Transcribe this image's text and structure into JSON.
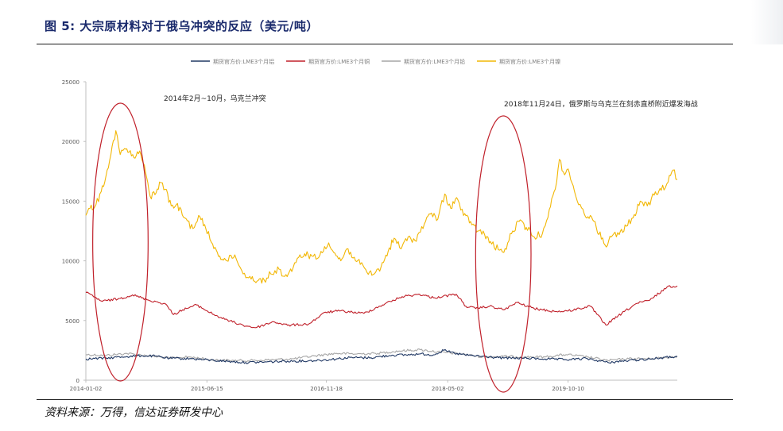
{
  "header": {
    "figure_title": "图 5:  大宗原材料对于俄乌冲突的反应（美元/吨）"
  },
  "footer": {
    "source": "资料来源：万得，信达证券研发中心"
  },
  "chart_data": {
    "type": "line",
    "title": "",
    "xlabel": "",
    "ylabel": "",
    "ylim": [
      0,
      25000
    ],
    "yticks": [
      0,
      5000,
      10000,
      15000,
      20000,
      25000
    ],
    "xticks": [
      "2014-01-02",
      "2015-06-15",
      "2016-11-18",
      "2018-05-02",
      "2019-10-10"
    ],
    "xlim": [
      "2014-01-02",
      "2021-01-29"
    ],
    "grid": false,
    "legend_position": "top",
    "annotations": [
      {
        "text": "2014年2月~10月，乌克兰冲突",
        "x_range": [
          "2014-02",
          "2014-10"
        ]
      },
      {
        "text": "2018年11月24日，俄罗斯与乌克兰在刻赤直桥附近爆发海战",
        "x_range": [
          "2018-09",
          "2019-05"
        ]
      }
    ],
    "series": [
      {
        "name": "期货官方价:LME3个月铝",
        "color": "#203864",
        "points": [
          [
            "2014-01-02",
            1780
          ],
          [
            "2014-04-01",
            1850
          ],
          [
            "2014-07-01",
            1990
          ],
          [
            "2014-09-01",
            2050
          ],
          [
            "2014-11-01",
            2020
          ],
          [
            "2015-01-02",
            1830
          ],
          [
            "2015-04-01",
            1810
          ],
          [
            "2015-07-01",
            1680
          ],
          [
            "2015-10-01",
            1560
          ],
          [
            "2015-12-01",
            1480
          ],
          [
            "2016-03-01",
            1530
          ],
          [
            "2016-06-01",
            1600
          ],
          [
            "2016-09-01",
            1620
          ],
          [
            "2016-12-01",
            1730
          ],
          [
            "2017-03-01",
            1900
          ],
          [
            "2017-06-01",
            1880
          ],
          [
            "2017-09-01",
            2100
          ],
          [
            "2017-11-01",
            2120
          ],
          [
            "2018-01-02",
            2200
          ],
          [
            "2018-03-01",
            2130
          ],
          [
            "2018-04-15",
            2500
          ],
          [
            "2018-06-01",
            2250
          ],
          [
            "2018-08-01",
            2080
          ],
          [
            "2018-11-01",
            1950
          ],
          [
            "2019-01-02",
            1850
          ],
          [
            "2019-04-01",
            1850
          ],
          [
            "2019-07-01",
            1780
          ],
          [
            "2019-10-01",
            1720
          ],
          [
            "2020-01-02",
            1810
          ],
          [
            "2020-04-01",
            1480
          ],
          [
            "2020-07-01",
            1650
          ],
          [
            "2020-10-01",
            1780
          ],
          [
            "2021-01-29",
            1990
          ]
        ]
      },
      {
        "name": "期货官方价:LME3个月铜",
        "color": "#c0202a",
        "points": [
          [
            "2014-01-02",
            7350
          ],
          [
            "2014-03-15",
            6600
          ],
          [
            "2014-06-01",
            6850
          ],
          [
            "2014-07-25",
            7150
          ],
          [
            "2014-10-01",
            6720
          ],
          [
            "2014-12-15",
            6400
          ],
          [
            "2015-01-20",
            5500
          ],
          [
            "2015-03-01",
            5900
          ],
          [
            "2015-05-01",
            6300
          ],
          [
            "2015-07-15",
            5500
          ],
          [
            "2015-09-01",
            5100
          ],
          [
            "2015-11-20",
            4600
          ],
          [
            "2016-01-15",
            4400
          ],
          [
            "2016-04-01",
            4900
          ],
          [
            "2016-06-01",
            4600
          ],
          [
            "2016-09-01",
            4700
          ],
          [
            "2016-11-15",
            5700
          ],
          [
            "2017-01-15",
            5800
          ],
          [
            "2017-05-01",
            5600
          ],
          [
            "2017-08-01",
            6400
          ],
          [
            "2017-10-15",
            7000
          ],
          [
            "2017-12-30",
            7200
          ],
          [
            "2018-03-01",
            6900
          ],
          [
            "2018-06-08",
            7200
          ],
          [
            "2018-07-20",
            6200
          ],
          [
            "2018-09-01",
            6000
          ],
          [
            "2018-11-01",
            6200
          ],
          [
            "2019-01-02",
            5900
          ],
          [
            "2019-03-01",
            6500
          ],
          [
            "2019-05-15",
            6000
          ],
          [
            "2019-08-15",
            5750
          ],
          [
            "2019-10-10",
            5800
          ],
          [
            "2020-01-15",
            6200
          ],
          [
            "2020-03-23",
            4620
          ],
          [
            "2020-06-01",
            5600
          ],
          [
            "2020-08-01",
            6400
          ],
          [
            "2020-10-01",
            6700
          ],
          [
            "2020-12-15",
            7800
          ],
          [
            "2021-01-29",
            7900
          ]
        ]
      },
      {
        "name": "期货官方价:LME3个月铅",
        "color": "#a6a6a6",
        "points": [
          [
            "2014-01-02",
            2150
          ],
          [
            "2014-04-01",
            2080
          ],
          [
            "2014-07-01",
            2240
          ],
          [
            "2014-10-01",
            2050
          ],
          [
            "2015-01-02",
            1850
          ],
          [
            "2015-04-01",
            1950
          ],
          [
            "2015-07-01",
            1720
          ],
          [
            "2015-10-01",
            1650
          ],
          [
            "2016-01-02",
            1650
          ],
          [
            "2016-04-01",
            1720
          ],
          [
            "2016-07-01",
            1800
          ],
          [
            "2016-10-01",
            2050
          ],
          [
            "2017-01-02",
            2250
          ],
          [
            "2017-04-01",
            2200
          ],
          [
            "2017-07-01",
            2250
          ],
          [
            "2017-10-01",
            2450
          ],
          [
            "2018-01-02",
            2550
          ],
          [
            "2018-04-01",
            2350
          ],
          [
            "2018-07-01",
            2200
          ],
          [
            "2018-10-01",
            1950
          ],
          [
            "2019-01-02",
            2000
          ],
          [
            "2019-04-01",
            1950
          ],
          [
            "2019-07-01",
            1950
          ],
          [
            "2019-10-01",
            2150
          ],
          [
            "2020-01-02",
            1950
          ],
          [
            "2020-04-01",
            1650
          ],
          [
            "2020-07-01",
            1800
          ],
          [
            "2020-10-01",
            1800
          ],
          [
            "2021-01-29",
            2000
          ]
        ]
      },
      {
        "name": "期货官方价:LME3个月镍",
        "color": "#f2b705",
        "points": [
          [
            "2014-01-02",
            13800
          ],
          [
            "2014-01-20",
            14400
          ],
          [
            "2014-02-15",
            14700
          ],
          [
            "2014-03-10",
            15800
          ],
          [
            "2014-04-05",
            17600
          ],
          [
            "2014-05-13",
            20900
          ],
          [
            "2014-06-01",
            18900
          ],
          [
            "2014-06-20",
            19400
          ],
          [
            "2014-07-10",
            19100
          ],
          [
            "2014-08-05",
            18600
          ],
          [
            "2014-08-25",
            19200
          ],
          [
            "2014-09-20",
            17400
          ],
          [
            "2014-10-10",
            15400
          ],
          [
            "2014-11-05",
            15700
          ],
          [
            "2014-11-20",
            16600
          ],
          [
            "2014-12-15",
            16000
          ],
          [
            "2015-01-10",
            14600
          ],
          [
            "2015-02-01",
            14700
          ],
          [
            "2015-03-10",
            13600
          ],
          [
            "2015-04-15",
            12700
          ],
          [
            "2015-05-10",
            13800
          ],
          [
            "2015-06-10",
            12700
          ],
          [
            "2015-07-10",
            11400
          ],
          [
            "2015-08-10",
            10400
          ],
          [
            "2015-09-10",
            10000
          ],
          [
            "2015-10-15",
            10500
          ],
          [
            "2015-11-20",
            8900
          ],
          [
            "2015-12-20",
            8700
          ],
          [
            "2016-01-20",
            8300
          ],
          [
            "2016-02-20",
            8400
          ],
          [
            "2016-03-20",
            8900
          ],
          [
            "2016-04-25",
            9300
          ],
          [
            "2016-05-20",
            8700
          ],
          [
            "2016-06-20",
            9100
          ],
          [
            "2016-07-20",
            10300
          ],
          [
            "2016-08-15",
            10600
          ],
          [
            "2016-09-15",
            10400
          ],
          [
            "2016-10-10",
            10200
          ],
          [
            "2016-11-10",
            11200
          ],
          [
            "2016-11-28",
            11500
          ],
          [
            "2016-12-20",
            10700
          ],
          [
            "2017-01-20",
            10000
          ],
          [
            "2017-02-15",
            11000
          ],
          [
            "2017-03-20",
            10300
          ],
          [
            "2017-04-15",
            9700
          ],
          [
            "2017-05-15",
            9000
          ],
          [
            "2017-06-15",
            8900
          ],
          [
            "2017-07-15",
            9500
          ],
          [
            "2017-08-15",
            10800
          ],
          [
            "2017-09-10",
            11900
          ],
          [
            "2017-10-10",
            11000
          ],
          [
            "2017-11-10",
            12000
          ],
          [
            "2017-12-10",
            11700
          ],
          [
            "2018-01-20",
            13100
          ],
          [
            "2018-02-20",
            14000
          ],
          [
            "2018-03-20",
            13500
          ],
          [
            "2018-04-19",
            15600
          ],
          [
            "2018-05-15",
            14400
          ],
          [
            "2018-06-10",
            15300
          ],
          [
            "2018-07-10",
            13800
          ],
          [
            "2018-08-10",
            13300
          ],
          [
            "2018-09-10",
            12500
          ],
          [
            "2018-10-10",
            12200
          ],
          [
            "2018-11-10",
            11400
          ],
          [
            "2018-12-15",
            10900
          ],
          [
            "2019-01-02",
            10700
          ],
          [
            "2019-02-10",
            12500
          ],
          [
            "2019-03-10",
            13300
          ],
          [
            "2019-04-10",
            12800
          ],
          [
            "2019-05-15",
            12000
          ],
          [
            "2019-06-20",
            12300
          ],
          [
            "2019-07-20",
            14300
          ],
          [
            "2019-08-15",
            16000
          ],
          [
            "2019-09-02",
            18500
          ],
          [
            "2019-09-25",
            17200
          ],
          [
            "2019-10-10",
            17700
          ],
          [
            "2019-11-01",
            16300
          ],
          [
            "2019-11-25",
            14700
          ],
          [
            "2019-12-20",
            13900
          ],
          [
            "2020-01-15",
            13800
          ],
          [
            "2020-02-10",
            12800
          ],
          [
            "2020-03-20",
            11300
          ],
          [
            "2020-04-20",
            12100
          ],
          [
            "2020-05-20",
            12200
          ],
          [
            "2020-06-20",
            12900
          ],
          [
            "2020-07-20",
            13600
          ],
          [
            "2020-08-20",
            15000
          ],
          [
            "2020-09-20",
            14600
          ],
          [
            "2020-10-20",
            15500
          ],
          [
            "2020-11-20",
            15900
          ],
          [
            "2020-12-20",
            16600
          ],
          [
            "2021-01-10",
            17600
          ],
          [
            "2021-01-29",
            16800
          ]
        ]
      }
    ]
  }
}
